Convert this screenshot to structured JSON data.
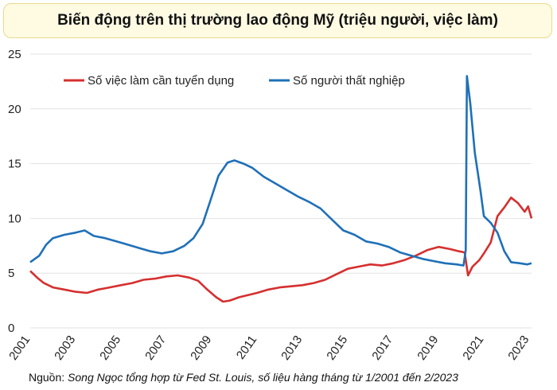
{
  "chart_data": {
    "type": "line",
    "title": "Biến động trên thị trường lao động Mỹ (triệu người, việc làm)",
    "xlabel": "",
    "ylabel": "",
    "ylim": [
      0,
      25
    ],
    "yticks": [
      0,
      5,
      10,
      15,
      20,
      25
    ],
    "xlim": [
      2001,
      2023.1
    ],
    "xticks": [
      "2001",
      "2003",
      "2005",
      "2007",
      "2009",
      "2011",
      "2013",
      "2015",
      "2017",
      "2019",
      "2021",
      "2023"
    ],
    "grid": "horizontal",
    "legend_position": "top-left",
    "series": [
      {
        "name": "Số việc làm cần tuyển dụng",
        "color": "#d62f2f",
        "points": [
          [
            2001.0,
            5.2
          ],
          [
            2001.3,
            4.6
          ],
          [
            2001.6,
            4.1
          ],
          [
            2002.0,
            3.7
          ],
          [
            2002.5,
            3.5
          ],
          [
            2003.0,
            3.3
          ],
          [
            2003.5,
            3.2
          ],
          [
            2004.0,
            3.5
          ],
          [
            2004.5,
            3.7
          ],
          [
            2005.0,
            3.9
          ],
          [
            2005.5,
            4.1
          ],
          [
            2006.0,
            4.4
          ],
          [
            2006.5,
            4.5
          ],
          [
            2007.0,
            4.7
          ],
          [
            2007.5,
            4.8
          ],
          [
            2008.0,
            4.6
          ],
          [
            2008.4,
            4.3
          ],
          [
            2008.8,
            3.5
          ],
          [
            2009.2,
            2.8
          ],
          [
            2009.5,
            2.4
          ],
          [
            2009.8,
            2.5
          ],
          [
            2010.2,
            2.8
          ],
          [
            2010.6,
            3.0
          ],
          [
            2011.0,
            3.2
          ],
          [
            2011.5,
            3.5
          ],
          [
            2012.0,
            3.7
          ],
          [
            2012.5,
            3.8
          ],
          [
            2013.0,
            3.9
          ],
          [
            2013.5,
            4.1
          ],
          [
            2014.0,
            4.4
          ],
          [
            2014.5,
            4.9
          ],
          [
            2015.0,
            5.4
          ],
          [
            2015.5,
            5.6
          ],
          [
            2016.0,
            5.8
          ],
          [
            2016.5,
            5.7
          ],
          [
            2017.0,
            5.9
          ],
          [
            2017.5,
            6.2
          ],
          [
            2018.0,
            6.6
          ],
          [
            2018.5,
            7.1
          ],
          [
            2019.0,
            7.4
          ],
          [
            2019.5,
            7.2
          ],
          [
            2019.9,
            7.0
          ],
          [
            2020.15,
            6.9
          ],
          [
            2020.3,
            4.8
          ],
          [
            2020.5,
            5.6
          ],
          [
            2020.8,
            6.2
          ],
          [
            2021.0,
            6.8
          ],
          [
            2021.3,
            7.8
          ],
          [
            2021.6,
            10.2
          ],
          [
            2021.9,
            11.0
          ],
          [
            2022.2,
            11.9
          ],
          [
            2022.5,
            11.4
          ],
          [
            2022.8,
            10.6
          ],
          [
            2022.95,
            11.1
          ],
          [
            2023.1,
            10.0
          ]
        ]
      },
      {
        "name": "Số người thất nghiệp",
        "color": "#1f70b8",
        "points": [
          [
            2001.0,
            6.0
          ],
          [
            2001.4,
            6.6
          ],
          [
            2001.7,
            7.6
          ],
          [
            2002.0,
            8.2
          ],
          [
            2002.5,
            8.5
          ],
          [
            2003.0,
            8.7
          ],
          [
            2003.4,
            8.9
          ],
          [
            2003.8,
            8.4
          ],
          [
            2004.3,
            8.2
          ],
          [
            2004.8,
            7.9
          ],
          [
            2005.3,
            7.6
          ],
          [
            2005.8,
            7.3
          ],
          [
            2006.3,
            7.0
          ],
          [
            2006.8,
            6.8
          ],
          [
            2007.3,
            7.0
          ],
          [
            2007.8,
            7.5
          ],
          [
            2008.2,
            8.2
          ],
          [
            2008.6,
            9.5
          ],
          [
            2009.0,
            12.0
          ],
          [
            2009.3,
            13.9
          ],
          [
            2009.7,
            15.1
          ],
          [
            2010.0,
            15.3
          ],
          [
            2010.4,
            15.0
          ],
          [
            2010.8,
            14.6
          ],
          [
            2011.3,
            13.8
          ],
          [
            2011.8,
            13.2
          ],
          [
            2012.3,
            12.6
          ],
          [
            2012.8,
            12.0
          ],
          [
            2013.3,
            11.5
          ],
          [
            2013.8,
            10.9
          ],
          [
            2014.3,
            9.9
          ],
          [
            2014.8,
            8.9
          ],
          [
            2015.3,
            8.5
          ],
          [
            2015.8,
            7.9
          ],
          [
            2016.3,
            7.7
          ],
          [
            2016.8,
            7.4
          ],
          [
            2017.3,
            6.9
          ],
          [
            2017.8,
            6.6
          ],
          [
            2018.3,
            6.3
          ],
          [
            2018.8,
            6.1
          ],
          [
            2019.3,
            5.9
          ],
          [
            2019.8,
            5.8
          ],
          [
            2020.1,
            5.7
          ],
          [
            2020.2,
            7.1
          ],
          [
            2020.25,
            23.0
          ],
          [
            2020.4,
            20.5
          ],
          [
            2020.6,
            16.0
          ],
          [
            2020.85,
            12.5
          ],
          [
            2021.0,
            10.2
          ],
          [
            2021.3,
            9.6
          ],
          [
            2021.6,
            8.7
          ],
          [
            2021.9,
            7.0
          ],
          [
            2022.2,
            6.0
          ],
          [
            2022.6,
            5.9
          ],
          [
            2022.9,
            5.8
          ],
          [
            2023.1,
            5.9
          ]
        ]
      }
    ]
  },
  "source": {
    "prefix": "Nguồn: ",
    "text": "Song Ngọc tổng hợp từ Fed St. Louis, số liệu hàng tháng từ 1/2001 đến 2/2023"
  }
}
